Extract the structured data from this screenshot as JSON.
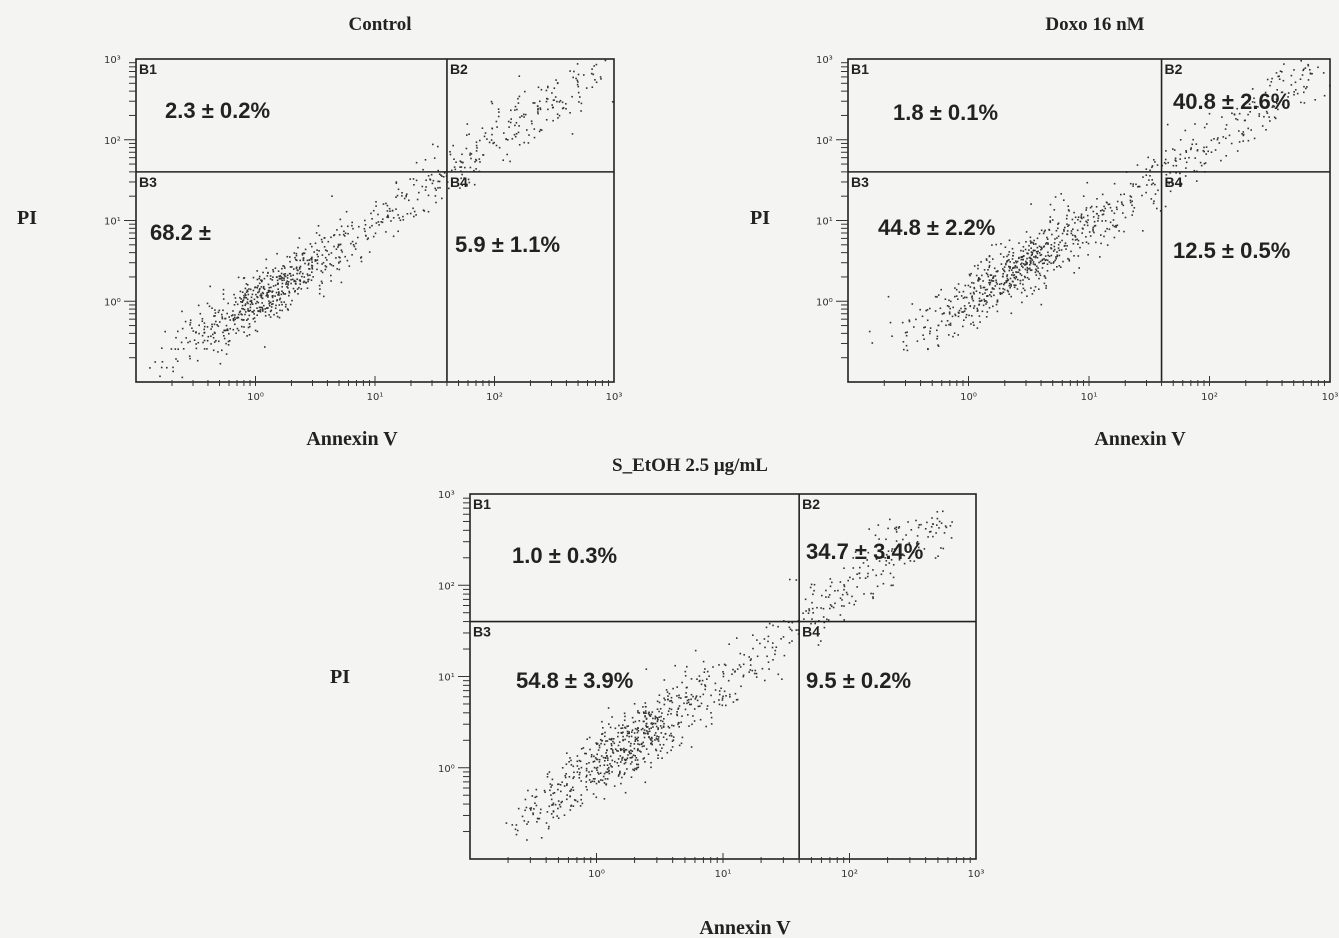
{
  "chart_data": [
    {
      "type": "scatter",
      "title": "Control",
      "xlabel": "Annexin V",
      "ylabel": "PI",
      "x_scale": "log",
      "y_scale": "log",
      "xlim": [
        0.1,
        1000
      ],
      "ylim": [
        0.1,
        1000
      ],
      "x_ticks": [
        "10⁰",
        "10¹",
        "10²",
        "10³"
      ],
      "y_ticks": [
        "10⁰",
        "10¹",
        "10²",
        "10³"
      ],
      "gate": {
        "x": 40,
        "y": 40
      },
      "quadrants": [
        {
          "id": "B1",
          "label": "B1",
          "value": "2.3 ± 0.2%"
        },
        {
          "id": "B2",
          "label": "B2",
          "value": ""
        },
        {
          "id": "B3",
          "label": "B3",
          "value": "68.2 ±"
        },
        {
          "id": "B4",
          "label": "B4",
          "value": "5.9 ± 1.1%"
        }
      ],
      "population": {
        "x_range": [
          0.3,
          700
        ],
        "y_range": [
          0.5,
          600
        ],
        "density_peak": [
          1.0,
          1.0
        ]
      }
    },
    {
      "type": "scatter",
      "title": "Doxo 16 nM",
      "xlabel": "Annexin V",
      "ylabel": "PI",
      "x_scale": "log",
      "y_scale": "log",
      "xlim": [
        0.1,
        1000
      ],
      "ylim": [
        0.1,
        1000
      ],
      "x_ticks": [
        "10⁰",
        "10¹",
        "10²",
        "10³"
      ],
      "y_ticks": [
        "10⁰",
        "10¹",
        "10²",
        "10³"
      ],
      "gate": {
        "x": 40,
        "y": 40
      },
      "quadrants": [
        {
          "id": "B1",
          "label": "B1",
          "value": "1.8 ± 0.1%"
        },
        {
          "id": "B2",
          "label": "B2",
          "value": "40.8 ± 2.6%"
        },
        {
          "id": "B3",
          "label": "B3",
          "value": "44.8 ± 2.2%"
        },
        {
          "id": "B4",
          "label": "B4",
          "value": "12.5 ± 0.5%"
        }
      ],
      "population": {
        "x_range": [
          0.3,
          800
        ],
        "y_range": [
          0.5,
          700
        ],
        "density_peak": [
          2.0,
          2.0
        ]
      }
    },
    {
      "type": "scatter",
      "title": "S_EtOH 2.5 μg/mL",
      "xlabel": "Annexin V",
      "ylabel": "PI",
      "x_scale": "log",
      "y_scale": "log",
      "xlim": [
        0.1,
        1000
      ],
      "ylim": [
        0.1,
        1000
      ],
      "x_ticks": [
        "10⁰",
        "10¹",
        "10²",
        "10³"
      ],
      "y_ticks": [
        "10⁰",
        "10¹",
        "10²",
        "10³"
      ],
      "gate": {
        "x": 40,
        "y": 40
      },
      "quadrants": [
        {
          "id": "B1",
          "label": "B1",
          "value": "1.0 ± 0.3%"
        },
        {
          "id": "B2",
          "label": "B2",
          "value": "34.7 ± 3.4%"
        },
        {
          "id": "B3",
          "label": "B3",
          "value": "54.8 ± 3.9%"
        },
        {
          "id": "B4",
          "label": "B4",
          "value": "9.5 ± 0.2%"
        }
      ],
      "population": {
        "x_range": [
          0.3,
          600
        ],
        "y_range": [
          0.5,
          600
        ],
        "density_peak": [
          1.5,
          1.5
        ]
      }
    }
  ]
}
